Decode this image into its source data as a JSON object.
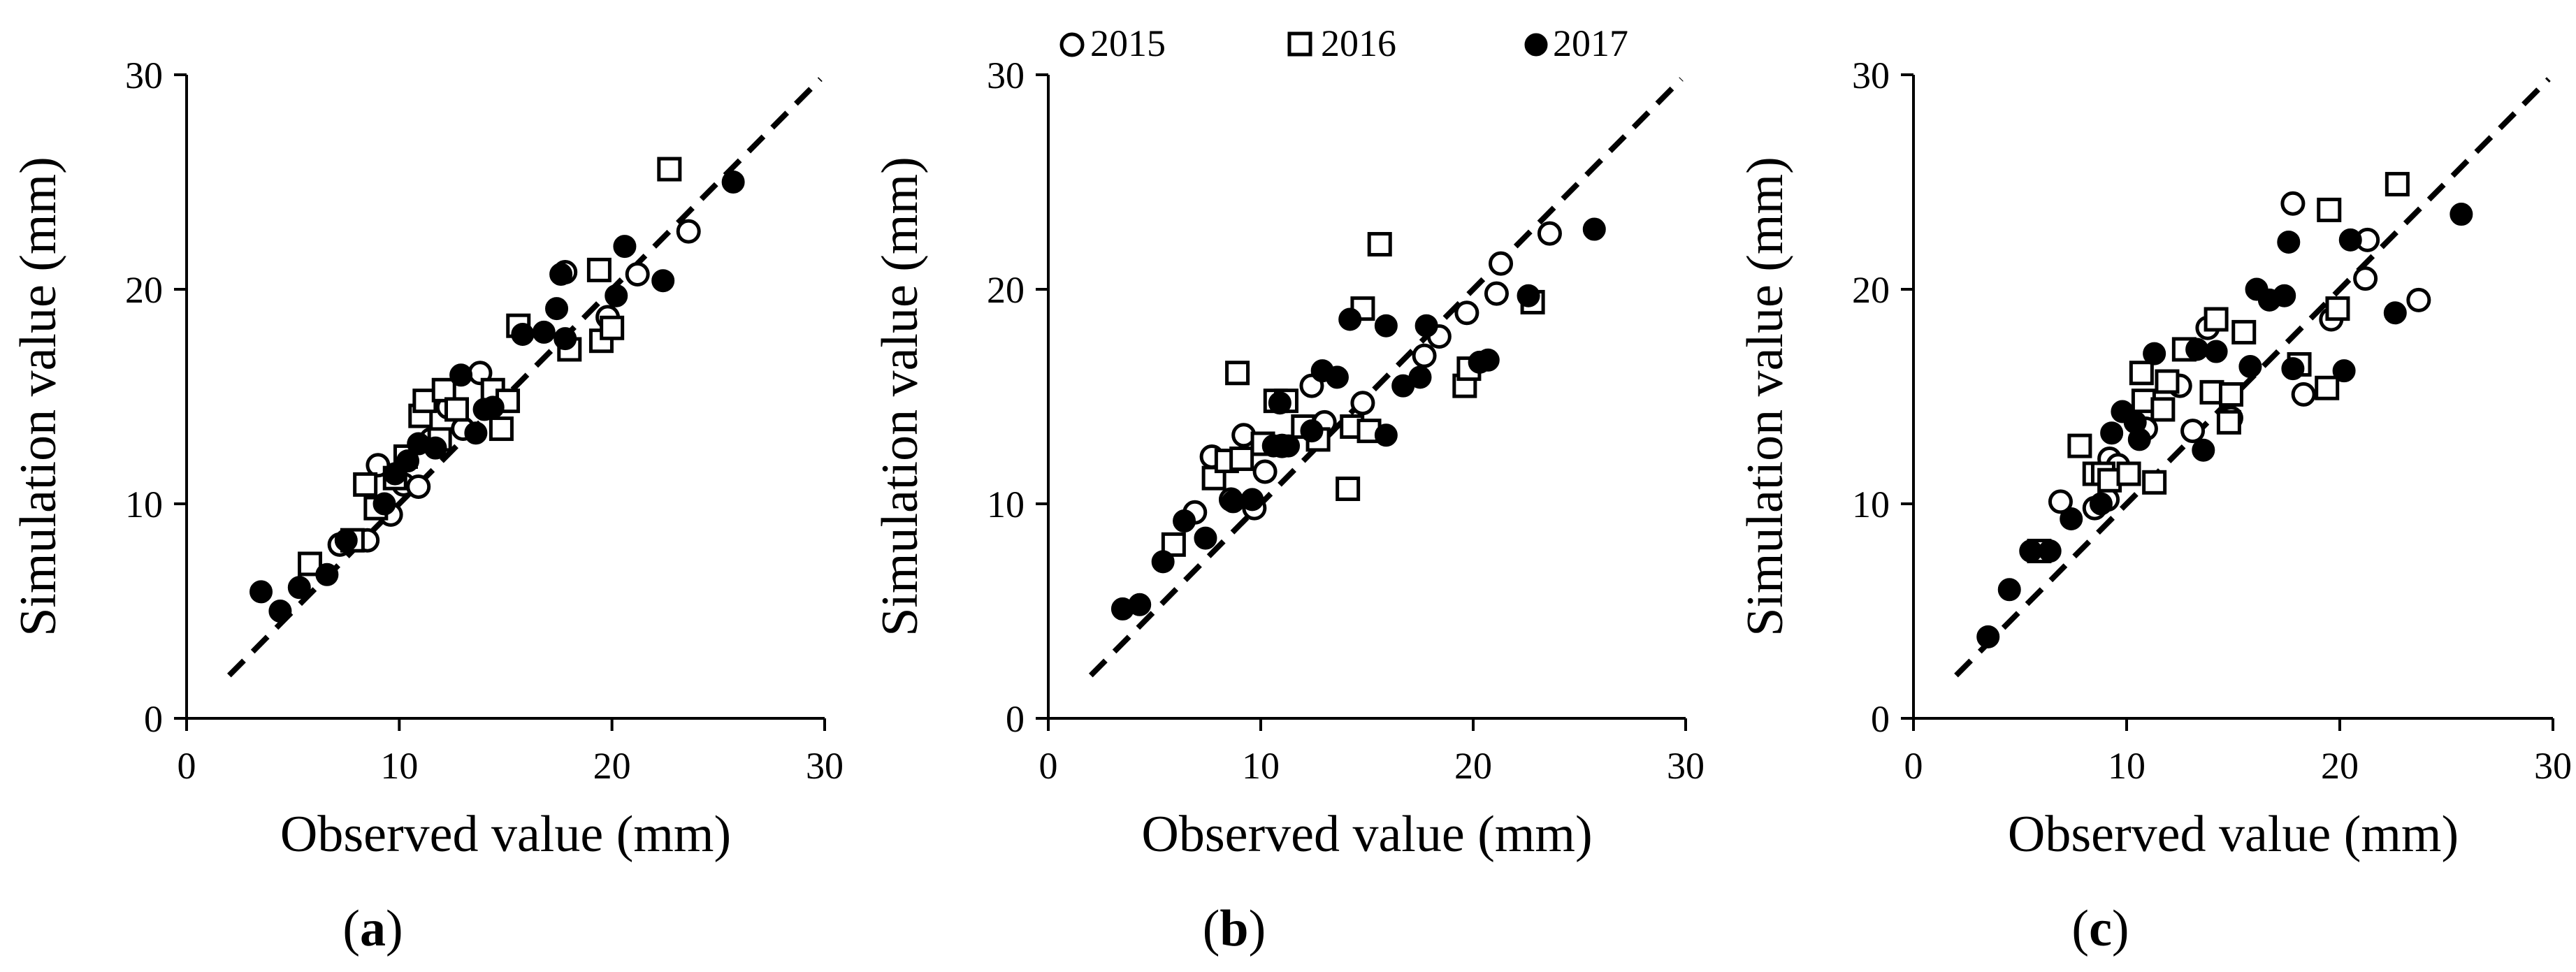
{
  "legend": {
    "entries": [
      {
        "label": "2015",
        "marker": "open-circle"
      },
      {
        "label": "2016",
        "marker": "open-square"
      },
      {
        "label": "2017",
        "marker": "filled-circle"
      }
    ]
  },
  "chart_data": [
    {
      "type": "scatter",
      "panel_label": "a",
      "xlabel": "Observed value (mm)",
      "ylabel": "Simulation value (mm)",
      "xlim": [
        0,
        30
      ],
      "ylim": [
        0,
        30
      ],
      "xticks": [
        0,
        10,
        20,
        30
      ],
      "yticks": [
        0,
        10,
        20,
        30
      ],
      "reference_line": {
        "style": "dashed",
        "points": [
          [
            2,
            2
          ],
          [
            29.8,
            29.8
          ]
        ]
      },
      "series": [
        {
          "name": "2015",
          "marker": "open-circle",
          "points": [
            [
              7.2,
              8.1
            ],
            [
              8.5,
              8.3
            ],
            [
              9.0,
              11.8
            ],
            [
              9.6,
              9.5
            ],
            [
              10.2,
              10.9
            ],
            [
              10.9,
              10.8
            ],
            [
              11.5,
              13.0
            ],
            [
              12.3,
              14.5
            ],
            [
              13.0,
              13.5
            ],
            [
              13.8,
              16.1
            ],
            [
              14.5,
              15.0
            ],
            [
              17.8,
              20.8
            ],
            [
              19.8,
              18.7
            ],
            [
              21.2,
              20.7
            ],
            [
              23.6,
              22.7
            ]
          ]
        },
        {
          "name": "2016",
          "marker": "open-square",
          "points": [
            [
              5.8,
              7.2
            ],
            [
              7.8,
              8.3
            ],
            [
              8.4,
              10.9
            ],
            [
              8.9,
              9.8
            ],
            [
              9.8,
              11.2
            ],
            [
              10.3,
              12.2
            ],
            [
              11.0,
              14.1
            ],
            [
              11.2,
              14.8
            ],
            [
              11.9,
              13.0
            ],
            [
              12.1,
              15.3
            ],
            [
              12.7,
              14.4
            ],
            [
              14.4,
              15.3
            ],
            [
              14.8,
              13.5
            ],
            [
              15.1,
              14.8
            ],
            [
              15.6,
              18.3
            ],
            [
              18.0,
              17.2
            ],
            [
              19.4,
              20.9
            ],
            [
              19.5,
              17.6
            ],
            [
              20.0,
              18.2
            ],
            [
              22.7,
              25.6
            ]
          ]
        },
        {
          "name": "2017",
          "marker": "filled-circle",
          "points": [
            [
              3.5,
              5.9
            ],
            [
              4.4,
              5.0
            ],
            [
              5.3,
              6.1
            ],
            [
              6.6,
              6.7
            ],
            [
              7.5,
              8.3
            ],
            [
              9.3,
              10.0
            ],
            [
              9.8,
              11.4
            ],
            [
              10.4,
              12.0
            ],
            [
              10.9,
              12.8
            ],
            [
              11.7,
              12.6
            ],
            [
              12.9,
              16.0
            ],
            [
              13.6,
              13.3
            ],
            [
              14.0,
              14.4
            ],
            [
              14.4,
              14.5
            ],
            [
              15.8,
              17.9
            ],
            [
              16.8,
              18.0
            ],
            [
              17.4,
              19.1
            ],
            [
              17.6,
              20.7
            ],
            [
              17.8,
              17.7
            ],
            [
              20.2,
              19.7
            ],
            [
              20.6,
              22.0
            ],
            [
              22.4,
              20.4
            ],
            [
              25.7,
              25.0
            ]
          ]
        }
      ]
    },
    {
      "type": "scatter",
      "panel_label": "b",
      "xlabel": "Observed value (mm)",
      "ylabel": "Simulation value (mm)",
      "xlim": [
        0,
        30
      ],
      "ylim": [
        0,
        30
      ],
      "xticks": [
        0,
        10,
        20,
        30
      ],
      "yticks": [
        0,
        10,
        20,
        30
      ],
      "reference_line": {
        "style": "dashed",
        "points": [
          [
            2,
            2
          ],
          [
            29.8,
            29.8
          ]
        ]
      },
      "series": [
        {
          "name": "2015",
          "marker": "open-circle",
          "points": [
            [
              6.9,
              9.6
            ],
            [
              7.7,
              12.2
            ],
            [
              8.6,
              10.2
            ],
            [
              9.2,
              13.2
            ],
            [
              9.7,
              9.8
            ],
            [
              10.2,
              11.5
            ],
            [
              11.0,
              12.7
            ],
            [
              12.4,
              15.5
            ],
            [
              13.0,
              13.8
            ],
            [
              14.8,
              14.7
            ],
            [
              17.7,
              16.9
            ],
            [
              18.4,
              17.8
            ],
            [
              19.7,
              18.9
            ],
            [
              21.1,
              19.8
            ],
            [
              21.3,
              21.2
            ],
            [
              23.6,
              22.6
            ]
          ]
        },
        {
          "name": "2016",
          "marker": "open-square",
          "points": [
            [
              5.9,
              8.1
            ],
            [
              7.8,
              11.2
            ],
            [
              8.4,
              12.0
            ],
            [
              8.9,
              16.1
            ],
            [
              9.1,
              12.1
            ],
            [
              10.1,
              12.8
            ],
            [
              10.7,
              14.8
            ],
            [
              11.2,
              14.8
            ],
            [
              12.0,
              13.6
            ],
            [
              12.7,
              13.0
            ],
            [
              14.1,
              10.7
            ],
            [
              14.3,
              13.6
            ],
            [
              14.8,
              19.1
            ],
            [
              15.1,
              13.4
            ],
            [
              15.6,
              22.1
            ],
            [
              19.6,
              15.5
            ],
            [
              19.8,
              16.3
            ],
            [
              22.8,
              19.4
            ]
          ]
        },
        {
          "name": "2017",
          "marker": "filled-circle",
          "points": [
            [
              3.5,
              5.1
            ],
            [
              4.3,
              5.3
            ],
            [
              5.4,
              7.3
            ],
            [
              6.4,
              9.2
            ],
            [
              7.4,
              8.4
            ],
            [
              8.7,
              10.1
            ],
            [
              9.6,
              10.2
            ],
            [
              10.6,
              12.7
            ],
            [
              10.9,
              14.7
            ],
            [
              11.3,
              12.7
            ],
            [
              12.4,
              13.4
            ],
            [
              12.9,
              16.2
            ],
            [
              13.6,
              15.9
            ],
            [
              14.2,
              18.6
            ],
            [
              15.9,
              13.2
            ],
            [
              15.9,
              18.3
            ],
            [
              16.7,
              15.5
            ],
            [
              17.5,
              15.9
            ],
            [
              17.8,
              18.3
            ],
            [
              20.3,
              16.6
            ],
            [
              20.7,
              16.7
            ],
            [
              22.6,
              19.7
            ],
            [
              25.7,
              22.8
            ]
          ]
        }
      ]
    },
    {
      "type": "scatter",
      "panel_label": "c",
      "xlabel": "Observed value (mm)",
      "ylabel": "Simulation value (mm)",
      "xlim": [
        0,
        30
      ],
      "ylim": [
        0,
        30
      ],
      "xticks": [
        0,
        10,
        20,
        30
      ],
      "yticks": [
        0,
        10,
        20,
        30
      ],
      "reference_line": {
        "style": "dashed",
        "points": [
          [
            2,
            2
          ],
          [
            29.8,
            29.8
          ]
        ]
      },
      "series": [
        {
          "name": "2015",
          "marker": "open-circle",
          "points": [
            [
              6.9,
              10.1
            ],
            [
              8.5,
              9.8
            ],
            [
              9.1,
              10.2
            ],
            [
              9.2,
              12.1
            ],
            [
              9.6,
              11.8
            ],
            [
              10.9,
              13.5
            ],
            [
              12.5,
              15.5
            ],
            [
              13.1,
              13.4
            ],
            [
              13.8,
              18.2
            ],
            [
              14.9,
              14.0
            ],
            [
              17.8,
              24.0
            ],
            [
              18.3,
              15.1
            ],
            [
              19.6,
              18.6
            ],
            [
              21.2,
              20.5
            ],
            [
              21.3,
              22.3
            ],
            [
              23.7,
              19.5
            ]
          ]
        },
        {
          "name": "2016",
          "marker": "open-square",
          "points": [
            [
              5.9,
              7.8
            ],
            [
              7.8,
              12.7
            ],
            [
              8.5,
              11.4
            ],
            [
              8.9,
              11.4
            ],
            [
              9.2,
              11.1
            ],
            [
              10.1,
              11.4
            ],
            [
              10.7,
              16.1
            ],
            [
              10.8,
              14.8
            ],
            [
              11.3,
              11.0
            ],
            [
              11.7,
              14.4
            ],
            [
              11.9,
              15.7
            ],
            [
              12.7,
              17.2
            ],
            [
              14.0,
              15.2
            ],
            [
              14.2,
              18.6
            ],
            [
              14.8,
              13.8
            ],
            [
              14.9,
              15.1
            ],
            [
              15.5,
              18.0
            ],
            [
              18.1,
              16.5
            ],
            [
              19.4,
              15.4
            ],
            [
              19.5,
              23.7
            ],
            [
              19.9,
              19.1
            ],
            [
              22.7,
              24.9
            ]
          ]
        },
        {
          "name": "2017",
          "marker": "filled-circle",
          "points": [
            [
              3.5,
              3.8
            ],
            [
              4.5,
              6.0
            ],
            [
              5.5,
              7.8
            ],
            [
              6.4,
              7.8
            ],
            [
              7.4,
              9.3
            ],
            [
              8.8,
              10.0
            ],
            [
              9.3,
              13.3
            ],
            [
              9.8,
              14.3
            ],
            [
              10.4,
              13.8
            ],
            [
              10.6,
              13.0
            ],
            [
              11.3,
              17.0
            ],
            [
              13.3,
              17.2
            ],
            [
              13.6,
              12.5
            ],
            [
              14.2,
              17.1
            ],
            [
              15.8,
              16.4
            ],
            [
              16.1,
              20.0
            ],
            [
              16.7,
              19.5
            ],
            [
              17.4,
              19.7
            ],
            [
              17.6,
              22.2
            ],
            [
              17.8,
              16.3
            ],
            [
              20.2,
              16.2
            ],
            [
              20.5,
              22.3
            ],
            [
              22.6,
              18.9
            ],
            [
              25.7,
              23.5
            ]
          ]
        }
      ]
    }
  ]
}
